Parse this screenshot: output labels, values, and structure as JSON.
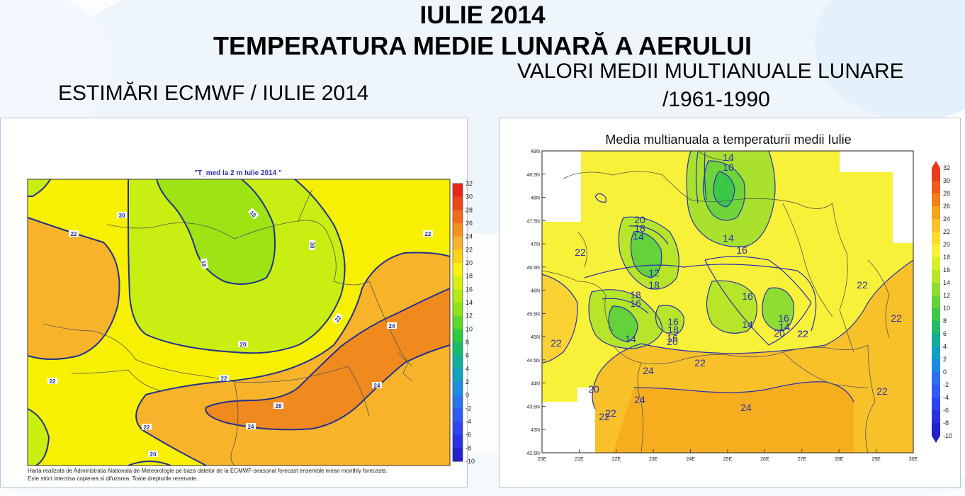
{
  "header": {
    "title_line1": "IULIE 2014",
    "title_line2": "TEMPERATURA MEDIE LUNARĂ A AERULUI",
    "left_caption": "ESTIMĂRI ECMWF / IULIE 2014",
    "right_caption_line1": "VALORI MEDII MULTIANUALE LUNARE",
    "right_caption_line2": "/1961-1990"
  },
  "left_map": {
    "title": "\"T_med la 2 m Iulie 2014 \"",
    "colorbar_labels": [
      "32",
      "30",
      "28",
      "26",
      "24",
      "22",
      "20",
      "18",
      "16",
      "14",
      "12",
      "10",
      "8",
      "6",
      "4",
      "2",
      "0",
      "-2",
      "-4",
      "-6",
      "-8",
      "-10"
    ],
    "colorbar_colors": [
      "#e8261d",
      "#f1441a",
      "#f36a1c",
      "#f6911e",
      "#f7b32a",
      "#fcd317",
      "#fbf211",
      "#d7f011",
      "#b4ea13",
      "#90e318",
      "#5fd72b",
      "#2ecb3f",
      "#17bc6c",
      "#10b09a",
      "#12a3c2",
      "#1d8de0",
      "#2b74f0",
      "#2f5bf6",
      "#2f45f2",
      "#2c31e6",
      "#2422cf"
    ],
    "contour_labels": [
      "30",
      "18",
      "22",
      "18",
      "30",
      "22",
      "22",
      "24",
      "22",
      "22",
      "20",
      "28",
      "24",
      "24",
      "20",
      "22",
      "22"
    ],
    "footer_line1": "Harta realizata de Administratia Nationala de Meteorologie pe baza datelor de la ECMWF-seasonal forecast ensemble mean monthly forecasts.",
    "footer_line2": "Este strict interzisa copierea si difuzarea. Toate drepturile rezervate."
  },
  "right_map": {
    "title": "Media multianuala a temperaturii medii Iulie",
    "colorbar_labels": [
      "32",
      "30",
      "28",
      "26",
      "24",
      "22",
      "20",
      "18",
      "16",
      "14",
      "12",
      "10",
      "8",
      "6",
      "4",
      "2",
      "0",
      "-2",
      "-4",
      "-6",
      "-8",
      "-10"
    ],
    "colorbar_colors": [
      "#e83a1f",
      "#f05a1c",
      "#f37e1c",
      "#f6a21d",
      "#f8c12a",
      "#fbdc2e",
      "#f8f139",
      "#d8ee2a",
      "#b6e52a",
      "#8fdd33",
      "#63d23b",
      "#3cc748",
      "#22ba6a",
      "#14ad93",
      "#12a0c2",
      "#1a8ae2",
      "#2a70ef",
      "#2f58f4",
      "#2d43ef",
      "#2a30e0",
      "#2321c9"
    ],
    "lat_labels": [
      "48N",
      "47.5N",
      "47N",
      "46.5N",
      "46N",
      "45.5N",
      "45N",
      "44.5N",
      "44N",
      "43.5N",
      "43N",
      "42.5N",
      "48.5N",
      "49N"
    ],
    "lon_labels": [
      "20E",
      "21E",
      "22E",
      "23E",
      "24E",
      "25E",
      "26E",
      "27E",
      "28E",
      "29E",
      "30E"
    ],
    "contour_labels": [
      "14",
      "10",
      "20",
      "18",
      "14",
      "22",
      "12",
      "18",
      "14",
      "16",
      "18",
      "14",
      "16",
      "14",
      "16",
      "16",
      "16",
      "18",
      "14",
      "22",
      "22",
      "16",
      "20",
      "22",
      "20",
      "20",
      "22",
      "24",
      "24",
      "24",
      "22",
      "22",
      "22",
      "22",
      "22"
    ]
  }
}
